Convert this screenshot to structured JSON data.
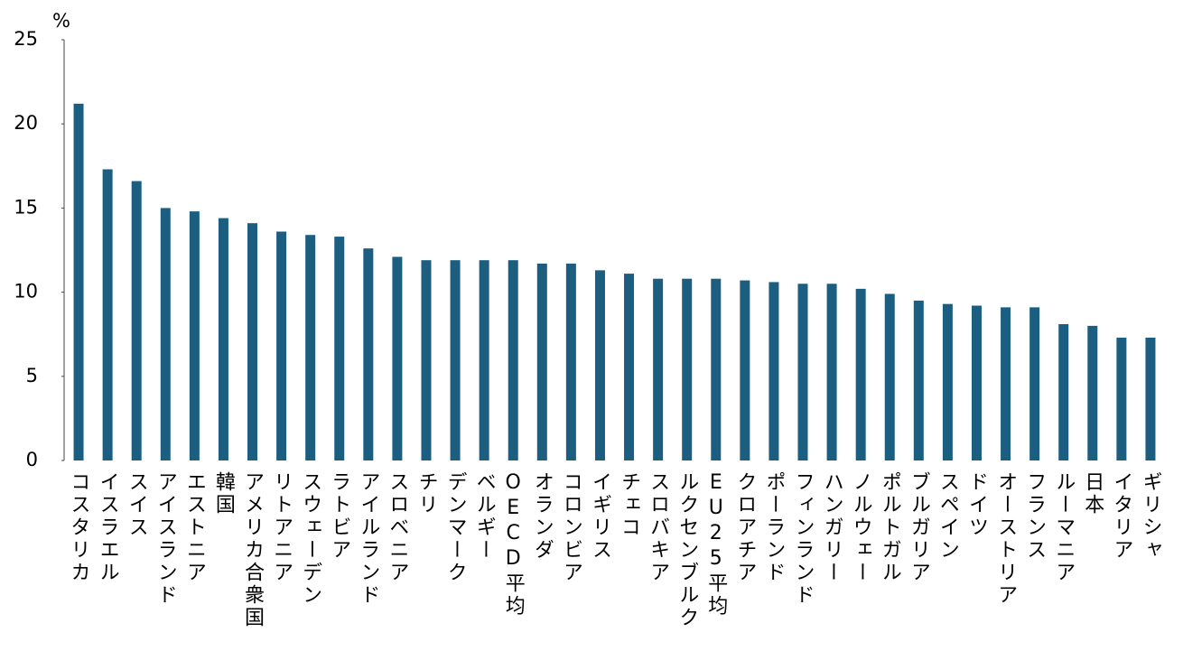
{
  "chart_data": {
    "type": "bar",
    "y_label": "%",
    "categories": [
      "コスタリカ",
      "イスラエル",
      "スイス",
      "アイスランド",
      "エストニア",
      "韓国",
      "アメリカ合衆国",
      "リトアニア",
      "スウェーデン",
      "ラトビア",
      "アイルランド",
      "スロベニア",
      "チリ",
      "デンマーク",
      "ベルギー",
      "OECD平均",
      "オランダ",
      "コロンビア",
      "イギリス",
      "チェコ",
      "スロバキア",
      "ルクセンブルク",
      "EU25平均",
      "クロアチア",
      "ポーランド",
      "フィンランド",
      "ハンガリー",
      "ノルウェー",
      "ポルトガル",
      "ブルガリア",
      "スペイン",
      "ドイツ",
      "オーストリア",
      "フランス",
      "ルーマニア",
      "日本",
      "イタリア",
      "ギリシャ"
    ],
    "values": [
      21.2,
      17.3,
      16.6,
      15.0,
      14.8,
      14.4,
      14.1,
      13.6,
      13.4,
      13.3,
      12.6,
      12.1,
      11.9,
      11.9,
      11.9,
      11.9,
      11.7,
      11.7,
      11.3,
      11.1,
      10.8,
      10.8,
      10.8,
      10.7,
      10.6,
      10.5,
      10.5,
      10.2,
      9.9,
      9.5,
      9.3,
      9.2,
      9.1,
      9.1,
      8.1,
      8.0,
      7.3,
      7.3
    ],
    "color": "#1b5e80",
    "ylim": [
      0,
      25
    ],
    "yticks": [
      0,
      5,
      10,
      15,
      20,
      25
    ],
    "grid": false
  }
}
